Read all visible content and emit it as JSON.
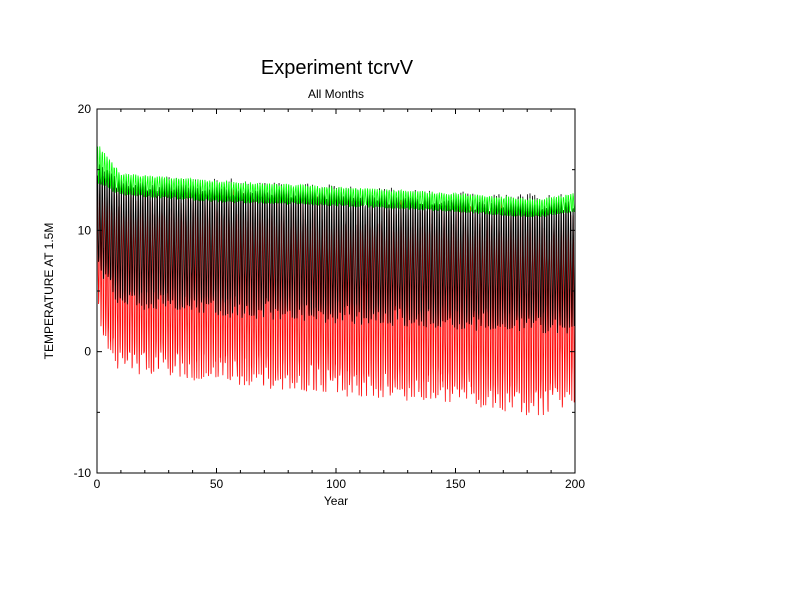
{
  "chart_data": {
    "type": "line",
    "title": "Experiment tcrvV",
    "subtitle": "All Months",
    "xlabel": "Year",
    "ylabel": "TEMPERATURE AT 1.5M",
    "xlim": [
      0,
      200
    ],
    "ylim": [
      -10,
      20
    ],
    "x_ticks": [
      "0",
      "50",
      "100",
      "150",
      "200"
    ],
    "y_ticks": [
      "-10",
      "0",
      "10",
      "20"
    ],
    "grid": false,
    "legend": "none",
    "series": [
      {
        "color": "#ff0000",
        "annual_mean_by_year": [
          [
            0,
            8.5
          ],
          [
            5,
            6.5
          ],
          [
            10,
            6.0
          ],
          [
            50,
            5.5
          ],
          [
            100,
            4.5
          ],
          [
            150,
            4.0
          ],
          [
            190,
            3.5
          ],
          [
            200,
            3.5
          ]
        ],
        "seasonal_amplitude_by_year": [
          [
            0,
            4.5
          ],
          [
            5,
            6.5
          ],
          [
            10,
            6.8
          ],
          [
            50,
            7.0
          ],
          [
            100,
            7.2
          ],
          [
            150,
            7.3
          ],
          [
            185,
            8.0
          ],
          [
            200,
            6.8
          ]
        ]
      },
      {
        "color": "#000000",
        "annual_mean_by_year": [
          [
            0,
            11.0
          ],
          [
            10,
            9.0
          ],
          [
            50,
            8.6
          ],
          [
            100,
            8.0
          ],
          [
            150,
            7.5
          ],
          [
            200,
            7.2
          ]
        ],
        "seasonal_amplitude_by_year": [
          [
            0,
            4.0
          ],
          [
            10,
            4.8
          ],
          [
            50,
            5.0
          ],
          [
            100,
            5.0
          ],
          [
            150,
            5.0
          ],
          [
            200,
            5.0
          ]
        ]
      },
      {
        "color": "#00ff00",
        "annual_mean_by_year": [
          [
            0,
            15.5
          ],
          [
            10,
            13.8
          ],
          [
            50,
            13.2
          ],
          [
            100,
            12.8
          ],
          [
            150,
            12.3
          ],
          [
            185,
            11.8
          ],
          [
            200,
            12.3
          ]
        ],
        "seasonal_amplitude_by_year": [
          [
            0,
            1.5
          ],
          [
            10,
            0.8
          ],
          [
            50,
            0.8
          ],
          [
            100,
            0.7
          ],
          [
            150,
            0.7
          ],
          [
            200,
            0.7
          ]
        ]
      }
    ]
  }
}
